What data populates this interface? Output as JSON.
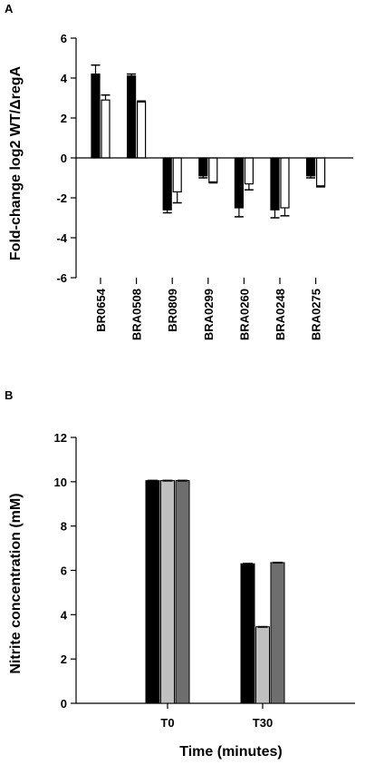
{
  "chart_data": [
    {
      "panel": "A",
      "type": "bar",
      "ylabel": "Fold-change log2 WT/ΔregA",
      "ylim": [
        -6,
        6
      ],
      "yticks": [
        -6,
        -4,
        -2,
        0,
        2,
        4,
        6
      ],
      "categories": [
        "BR0654",
        "BRA0508",
        "BR0809",
        "BRA0299",
        "BRA0260",
        "BRA0248",
        "BRA0275"
      ],
      "series": [
        {
          "color": "#000000",
          "values": [
            4.2,
            4.1,
            -2.6,
            -0.9,
            -2.5,
            -2.6,
            -0.9
          ],
          "errors": [
            0.45,
            0.1,
            0.15,
            0.1,
            0.45,
            0.4,
            0.1
          ]
        },
        {
          "color": "#ffffff",
          "values": [
            2.9,
            2.8,
            -1.7,
            -1.2,
            -1.3,
            -2.5,
            -1.4
          ],
          "errors": [
            0.25,
            0.05,
            0.55,
            0.05,
            0.3,
            0.4,
            0.05
          ]
        }
      ],
      "grid": false
    },
    {
      "panel": "B",
      "type": "bar",
      "xlabel": "Time (minutes)",
      "ylabel": "Nitrite concentration (mM)",
      "ylim": [
        0,
        12
      ],
      "yticks": [
        0,
        2,
        4,
        6,
        8,
        10,
        12
      ],
      "categories": [
        "T0",
        "T30"
      ],
      "series": [
        {
          "color": "#000000",
          "values": [
            10.05,
            6.3
          ]
        },
        {
          "color": "#c0c0c0",
          "values": [
            10.05,
            3.45
          ]
        },
        {
          "color": "#6e6e6e",
          "values": [
            10.05,
            6.35
          ]
        }
      ],
      "grid": false
    }
  ]
}
